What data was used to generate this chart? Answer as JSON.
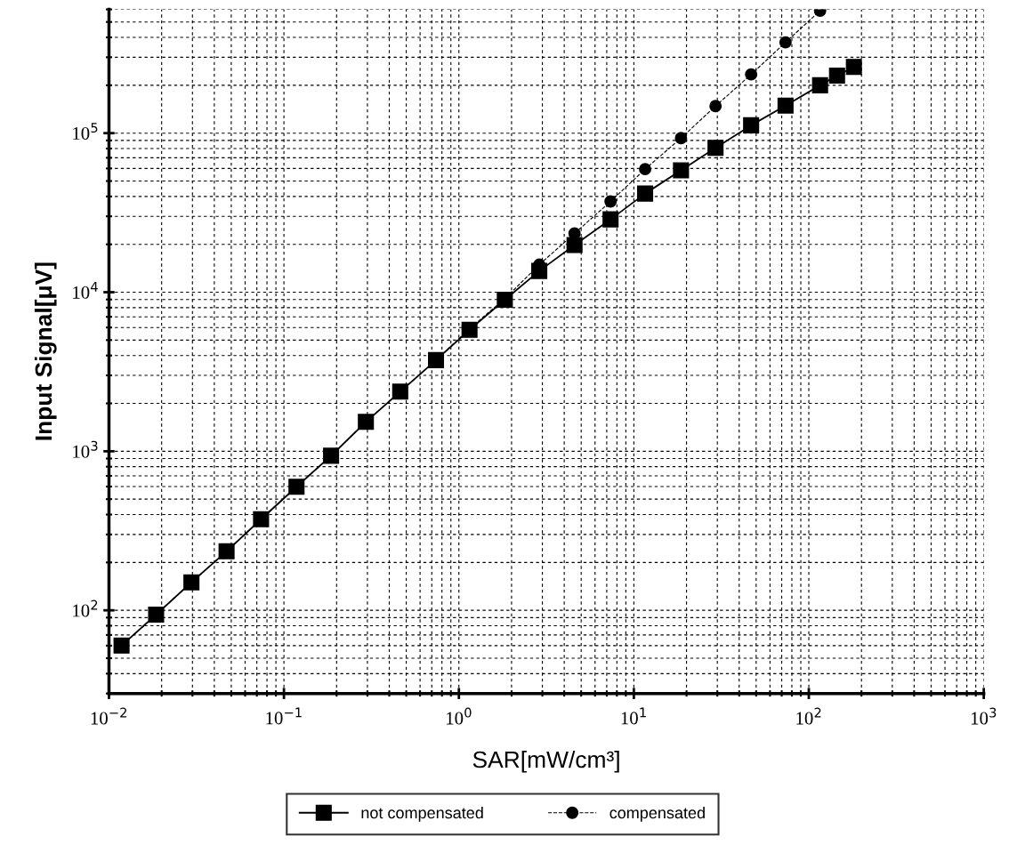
{
  "chart_data": {
    "type": "line",
    "xlabel": "SAR[mW/cm³]",
    "ylabel": "Input Signal[μV]",
    "log": "xy",
    "xlim": [
      0.01,
      1000
    ],
    "ylim": [
      30,
      600000
    ],
    "xticks": [
      {
        "value": 0.01,
        "label": "10$^{−2}$"
      },
      {
        "value": 0.1,
        "label": "10$^{−1}$"
      },
      {
        "value": 1,
        "label": "10$^{0}$"
      },
      {
        "value": 10,
        "label": "10$^{1}$"
      },
      {
        "value": 100,
        "label": "10$^{2}$"
      },
      {
        "value": 1000,
        "label": "10$^{3}$"
      }
    ],
    "yticks": [
      {
        "value": 100,
        "label": "10$^{2}$"
      },
      {
        "value": 1000,
        "label": "10$^{3}$"
      },
      {
        "value": 10000,
        "label": "10$^{4}$"
      },
      {
        "value": 100000,
        "label": "10$^{5}$"
      }
    ],
    "grid": true,
    "legend": "bottom",
    "series": [
      {
        "name": "not compensated",
        "color": "#000000",
        "marker": "square",
        "line_style": "solid",
        "x": [
          0.0118,
          0.0186,
          0.0296,
          0.047,
          0.074,
          0.118,
          0.186,
          0.294,
          0.462,
          0.74,
          1.15,
          1.83,
          2.88,
          4.58,
          7.36,
          11.6,
          18.6,
          29.3,
          46.8,
          73.6,
          116,
          145,
          181
        ],
        "values": [
          60,
          94,
          150,
          235,
          374,
          598,
          937,
          1530,
          2370,
          3740,
          5800,
          8970,
          13600,
          19800,
          28700,
          41700,
          58400,
          80900,
          112000,
          149000,
          200000,
          230000,
          261000
        ]
      },
      {
        "name": "compensated",
        "color": "#000000",
        "marker": "circle",
        "line_style": "dashed",
        "x": [
          0.0118,
          0.0186,
          0.0296,
          0.047,
          0.074,
          0.118,
          0.186,
          0.294,
          0.462,
          0.74,
          1.15,
          1.83,
          2.88,
          4.58,
          7.36,
          11.6,
          18.6,
          29.3,
          46.8,
          73.6,
          116
        ],
        "values": [
          60,
          94,
          150,
          235,
          374,
          598,
          937,
          1530,
          2370,
          3740,
          5900,
          9100,
          14900,
          23400,
          37200,
          59400,
          93100,
          148000,
          234000,
          372000,
          589000
        ]
      }
    ]
  }
}
